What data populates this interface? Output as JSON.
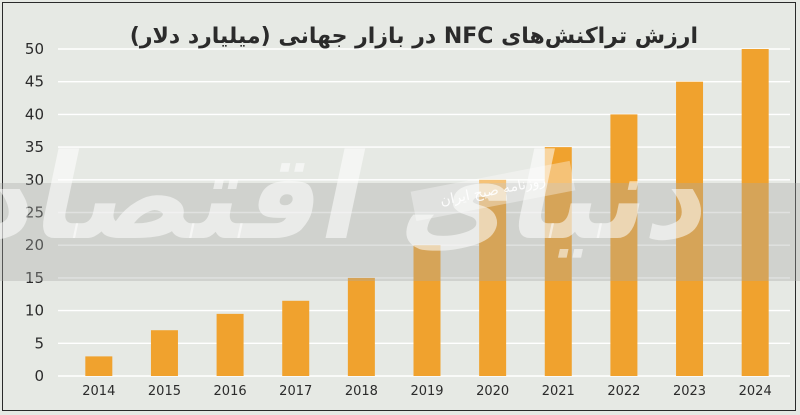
{
  "chart_data": {
    "type": "bar",
    "title": "ارزش تراکنش‌های NFC در بازار جهانی (میلیارد دلار)",
    "xlabel": "",
    "ylabel": "",
    "categories": [
      "2014",
      "2015",
      "2016",
      "2017",
      "2018",
      "2019",
      "2020",
      "2021",
      "2022",
      "2023",
      "2024"
    ],
    "values": [
      3,
      7,
      9.5,
      11.5,
      15,
      20,
      30,
      35,
      40,
      45,
      50
    ],
    "ylim": [
      0,
      50
    ],
    "yticks": [
      0,
      5,
      10,
      15,
      20,
      25,
      30,
      35,
      40,
      45,
      50
    ],
    "grid": true,
    "bar_color": "#f0a22e",
    "grid_color": "#ffffff"
  },
  "watermark": {
    "logo_text": "دنیای اقتصاد",
    "caption": "روزنامه صبح ایران"
  }
}
